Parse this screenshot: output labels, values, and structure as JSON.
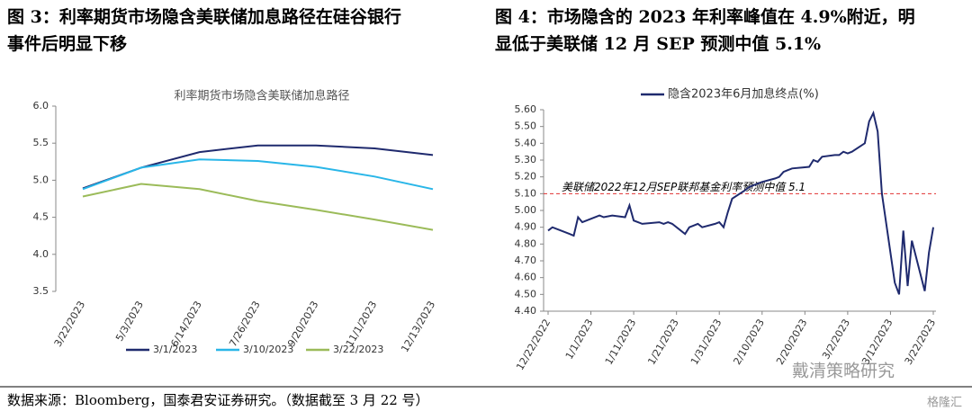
{
  "figures": [
    {
      "caption": [
        "图 3：利率期货市场隐含美联储加息路径在硅谷银行",
        "事件后明显下移"
      ],
      "chart_data": {
        "type": "line",
        "title": "利率期货市场隐含美联储加息路径",
        "categories": [
          "3/22/2023",
          "5/3/2023",
          "6/14/2023",
          "7/26/2023",
          "9/20/2023",
          "11/1/2023",
          "12/13/2023"
        ],
        "series": [
          {
            "name": "3/1/2023",
            "color": "#1f2a6e",
            "values": [
              4.89,
              5.17,
              5.38,
              5.47,
              5.47,
              5.43,
              5.34
            ]
          },
          {
            "name": "3/10/2023",
            "color": "#29b6e8",
            "values": [
              4.88,
              5.17,
              5.28,
              5.26,
              5.18,
              5.05,
              4.88
            ]
          },
          {
            "name": "3/22/2023",
            "color": "#9bbb59",
            "values": [
              4.78,
              4.95,
              4.88,
              4.72,
              4.6,
              4.47,
              4.33
            ]
          }
        ],
        "ylim": [
          3.5,
          6.0
        ],
        "yticks": [
          3.5,
          {
            "value": 4,
            "label": "4.0"
          },
          4.5,
          {
            "value": 5,
            "label": "5.0"
          },
          5.5,
          {
            "value": 6,
            "label": "6.0"
          }
        ],
        "legend": "bottom"
      }
    },
    {
      "caption": [
        "图 4：市场隐含的 2023 年利率峰值在 4.9%附近，明",
        "显低于美联储 12 月 SEP 预测中值 5.1%"
      ],
      "chart_data": {
        "type": "line",
        "x": [
          "12/22/2022",
          "12/23/2022",
          "12/27/2022",
          "12/28/2022",
          "12/29/2022",
          "12/30/2022",
          "1/3/2023",
          "1/4/2023",
          "1/6/2023",
          "1/9/2023",
          "1/10/2023",
          "1/11/2023",
          "1/12/2023",
          "1/13/2023",
          "1/17/2023",
          "1/18/2023",
          "1/19/2023",
          "1/20/2023",
          "1/23/2023",
          "1/24/2023",
          "1/25/2023",
          "1/26/2023",
          "1/27/2023",
          "1/30/2023",
          "1/31/2023",
          "2/1/2023",
          "2/2/2023",
          "2/3/2023",
          "2/6/2023",
          "2/7/2023",
          "2/8/2023",
          "2/9/2023",
          "2/10/2023",
          "2/13/2023",
          "2/14/2023",
          "2/15/2023",
          "2/16/2023",
          "2/17/2023",
          "2/21/2023",
          "2/22/2023",
          "2/23/2023",
          "2/24/2023",
          "2/27/2023",
          "2/28/2023",
          "3/1/2023",
          "3/2/2023",
          "3/3/2023",
          "3/6/2023",
          "3/7/2023",
          "3/8/2023",
          "3/9/2023",
          "3/10/2023",
          "3/13/2023",
          "3/14/2023",
          "3/15/2023",
          "3/16/2023",
          "3/17/2023",
          "3/20/2023",
          "3/21/2023",
          "3/22/2023"
        ],
        "series": [
          {
            "name": "隐含2023年6月加息终点(%)",
            "color": "#1f2a6e",
            "values": [
              4.88,
              4.9,
              4.86,
              4.85,
              4.96,
              4.93,
              4.97,
              4.96,
              4.97,
              4.96,
              5.03,
              4.94,
              4.93,
              4.92,
              4.93,
              4.92,
              4.93,
              4.92,
              4.86,
              4.9,
              4.91,
              4.92,
              4.9,
              4.92,
              4.93,
              4.9,
              4.99,
              5.07,
              5.12,
              5.14,
              5.15,
              5.16,
              5.17,
              5.19,
              5.2,
              5.23,
              5.24,
              5.25,
              5.26,
              5.3,
              5.29,
              5.32,
              5.33,
              5.33,
              5.35,
              5.34,
              5.35,
              5.4,
              5.53,
              5.58,
              5.47,
              5.1,
              4.57,
              4.5,
              4.88,
              4.55,
              4.82,
              4.52,
              4.75,
              4.9
            ]
          }
        ],
        "xlim": [
          "12/22/2022",
          "3/22/2023"
        ],
        "xticks": [
          "12/22/2022",
          "1/1/2023",
          "1/11/2023",
          "1/21/2023",
          "1/31/2023",
          "2/10/2023",
          "2/20/2023",
          "3/2/2023",
          "3/12/2023",
          "3/22/2023"
        ],
        "ylim": [
          4.4,
          5.6
        ],
        "yticks": [
          {
            "value": 4.4,
            "label": "4.40"
          },
          {
            "value": 4.5,
            "label": "4.50"
          },
          {
            "value": 4.6,
            "label": "4.60"
          },
          {
            "value": 4.7,
            "label": "4.70"
          },
          {
            "value": 4.8,
            "label": "4.80"
          },
          {
            "value": 4.9,
            "label": "4.90"
          },
          {
            "value": 5,
            "label": "5.00"
          },
          {
            "value": 5.1,
            "label": "5.10"
          },
          {
            "value": 5.2,
            "label": "5.20"
          },
          {
            "value": 5.3,
            "label": "5.30"
          },
          {
            "value": 5.4,
            "label": "5.40"
          },
          {
            "value": 5.5,
            "label": "5.50"
          },
          {
            "value": 5.6,
            "label": "5.60"
          }
        ],
        "reference_line": {
          "value": 5.1,
          "color": "#e03030",
          "label": "美联储2022年12月SEP联邦基金利率预测中值  5.1"
        },
        "legend": "top"
      }
    }
  ],
  "source": "数据来源：Bloomberg，国泰君安证券研究。（数据截至 3 月 22 号）",
  "watermark": [
    "戴清策略研究",
    "格隆汇"
  ]
}
